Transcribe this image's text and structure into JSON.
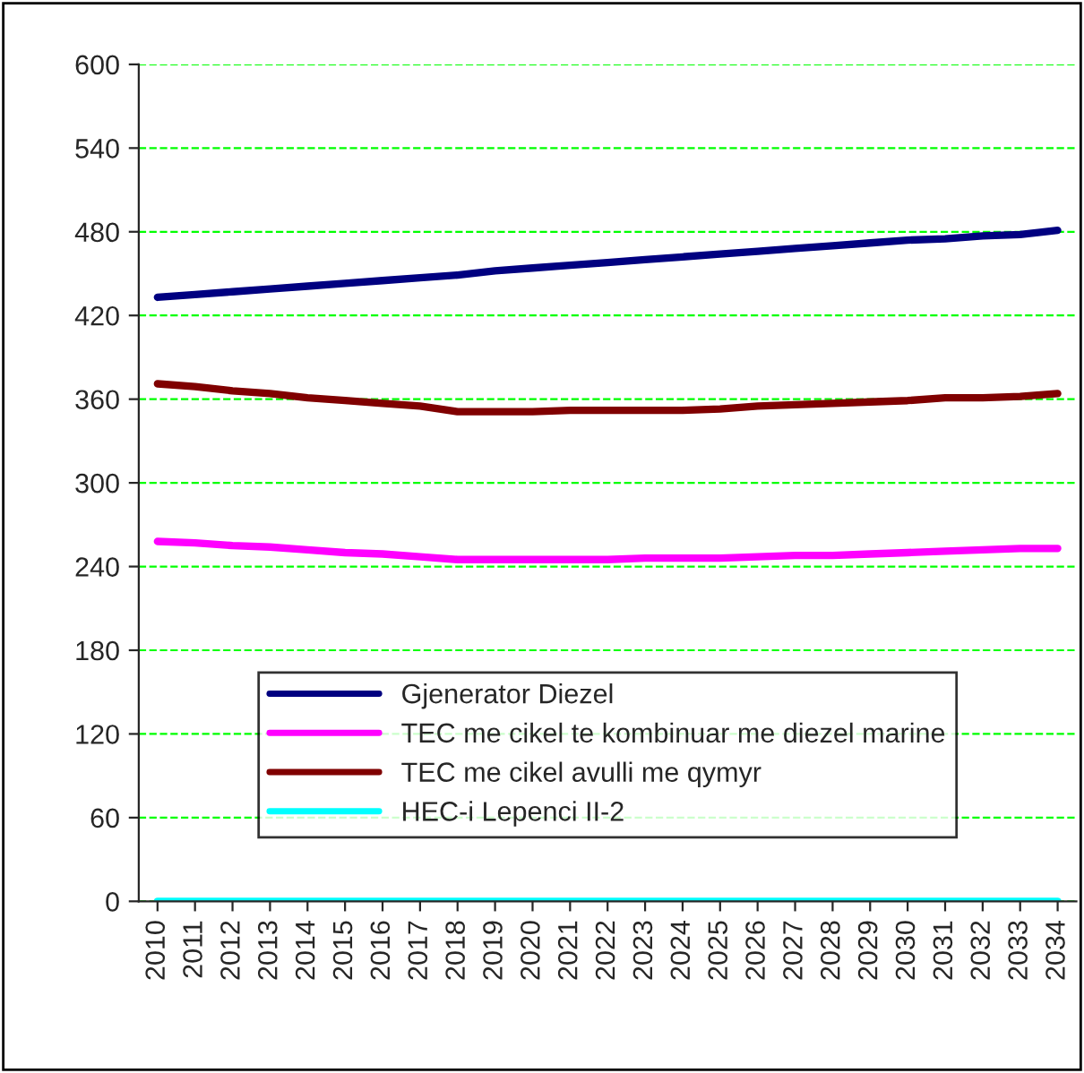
{
  "chart_data": {
    "type": "line",
    "categories": [
      "2010",
      "2011",
      "2012",
      "2013",
      "2014",
      "2015",
      "2016",
      "2017",
      "2018",
      "2019",
      "2020",
      "2021",
      "2022",
      "2023",
      "2024",
      "2025",
      "2026",
      "2027",
      "2028",
      "2029",
      "2030",
      "2031",
      "2032",
      "2033",
      "2034"
    ],
    "series": [
      {
        "name": "Gjenerator Diezel",
        "color": "#000080",
        "values": [
          433,
          435,
          437,
          439,
          441,
          443,
          445,
          447,
          449,
          452,
          454,
          456,
          458,
          460,
          462,
          464,
          466,
          468,
          470,
          472,
          474,
          475,
          477,
          478,
          481
        ]
      },
      {
        "name": "TEC me cikel te kombinuar me diezel marine",
        "color": "#ff00ff",
        "values": [
          258,
          257,
          255,
          254,
          252,
          250,
          249,
          247,
          245,
          245,
          245,
          245,
          245,
          246,
          246,
          246,
          247,
          248,
          248,
          249,
          250,
          251,
          252,
          253,
          253
        ]
      },
      {
        "name": "TEC me cikel avulli me qymyr",
        "color": "#800000",
        "values": [
          371,
          369,
          366,
          364,
          361,
          359,
          357,
          355,
          351,
          351,
          351,
          352,
          352,
          352,
          352,
          353,
          355,
          356,
          357,
          358,
          359,
          361,
          361,
          362,
          364
        ]
      },
      {
        "name": "HEC-i Lepenci II-2",
        "color": "#00ffff",
        "values": [
          0,
          0,
          0,
          0,
          0,
          0,
          0,
          0,
          0,
          0,
          0,
          0,
          0,
          0,
          0,
          0,
          0,
          0,
          0,
          0,
          0,
          0,
          0,
          0,
          0
        ]
      }
    ],
    "ylim": [
      0,
      600
    ],
    "yticks": [
      0,
      60,
      120,
      180,
      240,
      300,
      360,
      420,
      480,
      540,
      600
    ],
    "grid": "y",
    "legend": "bottom",
    "marker": "none",
    "line_style": "solid"
  }
}
